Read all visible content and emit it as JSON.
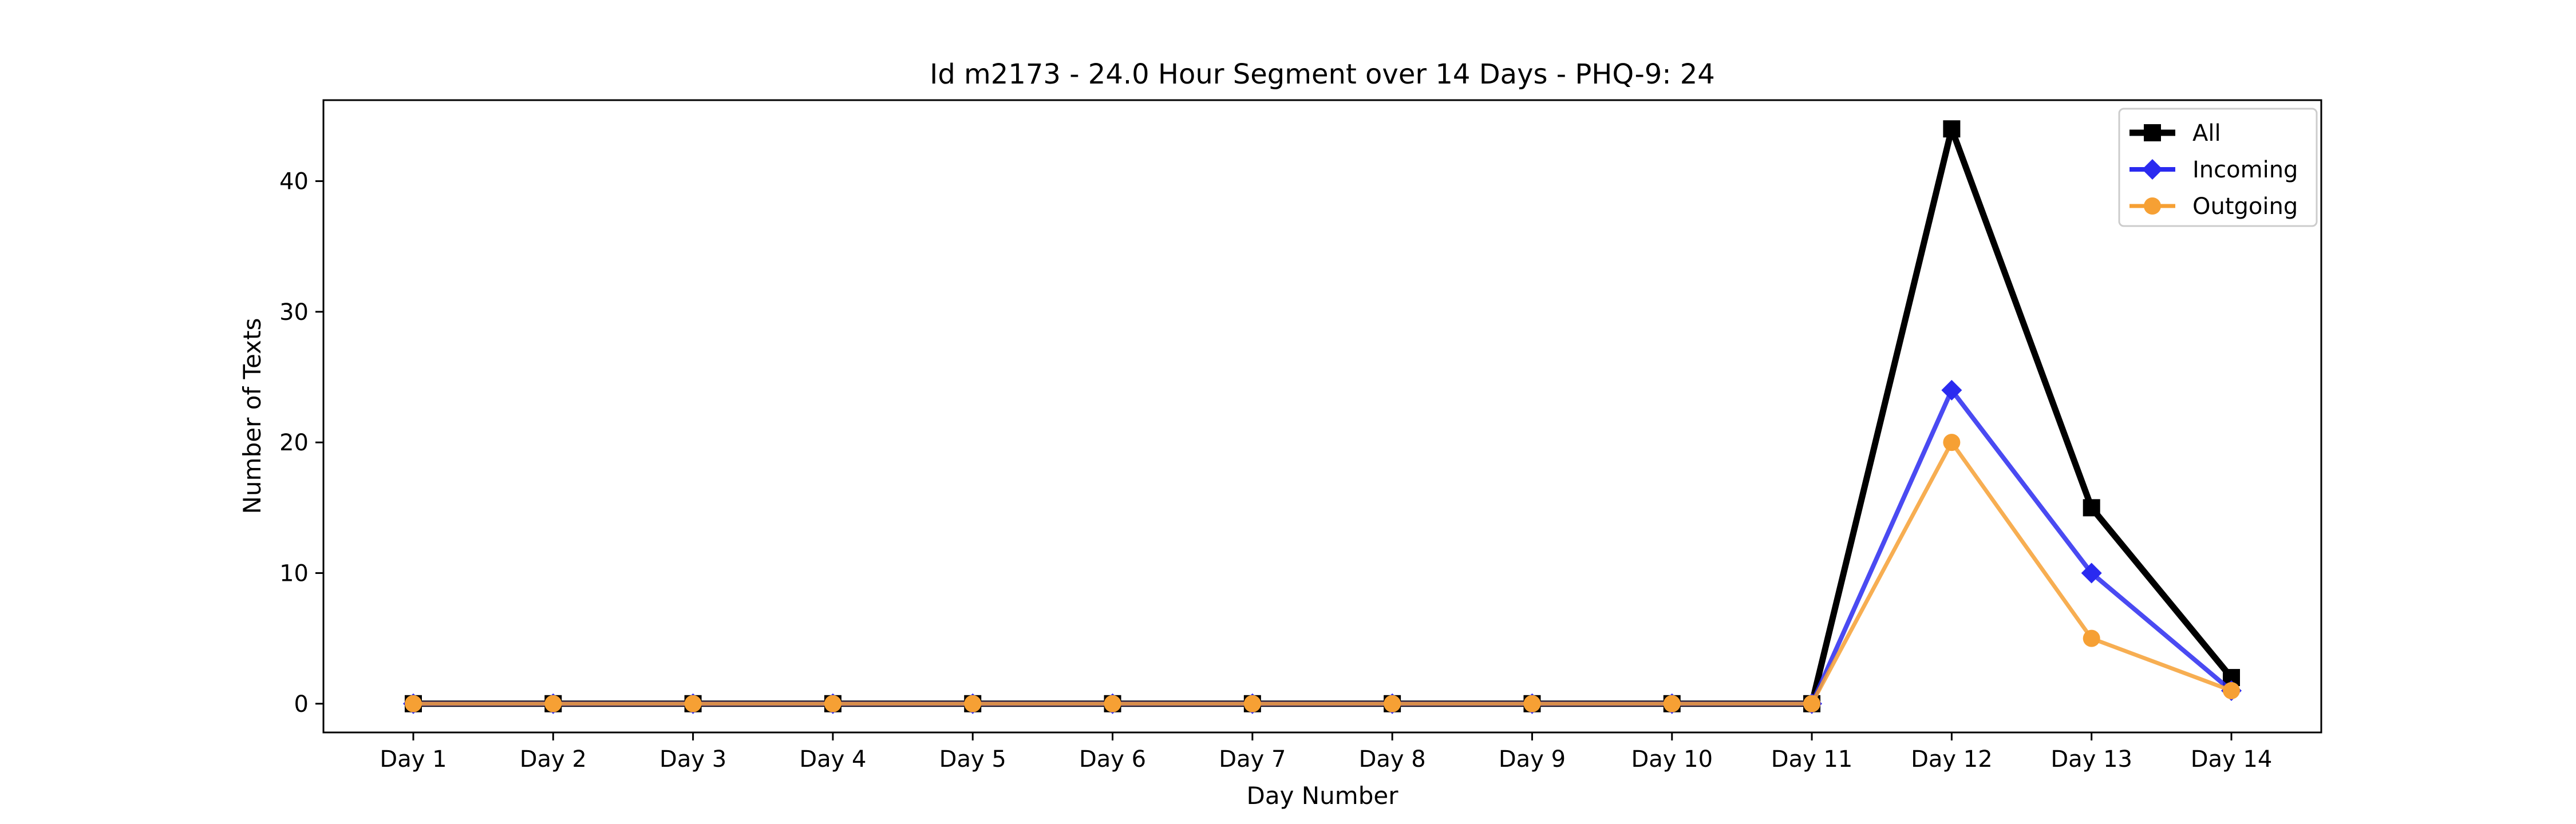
{
  "chart_data": {
    "type": "line",
    "title": "Id m2173 - 24.0 Hour Segment over 14 Days - PHQ-9: 24",
    "xlabel": "Day Number",
    "ylabel": "Number of Texts",
    "categories": [
      "Day 1",
      "Day 2",
      "Day 3",
      "Day 4",
      "Day 5",
      "Day 6",
      "Day 7",
      "Day 8",
      "Day 9",
      "Day 10",
      "Day 11",
      "Day 12",
      "Day 13",
      "Day 14"
    ],
    "ylim": [
      -2.2,
      46.2
    ],
    "yticks": [
      "0",
      "10",
      "20",
      "30",
      "40"
    ],
    "grid": false,
    "legend_position": "top-right",
    "series": [
      {
        "name": "All",
        "values": [
          0,
          0,
          0,
          0,
          0,
          0,
          0,
          0,
          0,
          0,
          0,
          44,
          15,
          2
        ],
        "color": "#000000",
        "marker": "square"
      },
      {
        "name": "Incoming",
        "values": [
          0,
          0,
          0,
          0,
          0,
          0,
          0,
          0,
          0,
          0,
          0,
          24,
          10,
          1
        ],
        "color": "#2a2af0",
        "marker": "diamond"
      },
      {
        "name": "Outgoing",
        "values": [
          0,
          0,
          0,
          0,
          0,
          0,
          0,
          0,
          0,
          0,
          0,
          20,
          5,
          1
        ],
        "color": "#f6a034",
        "marker": "circle"
      }
    ]
  }
}
